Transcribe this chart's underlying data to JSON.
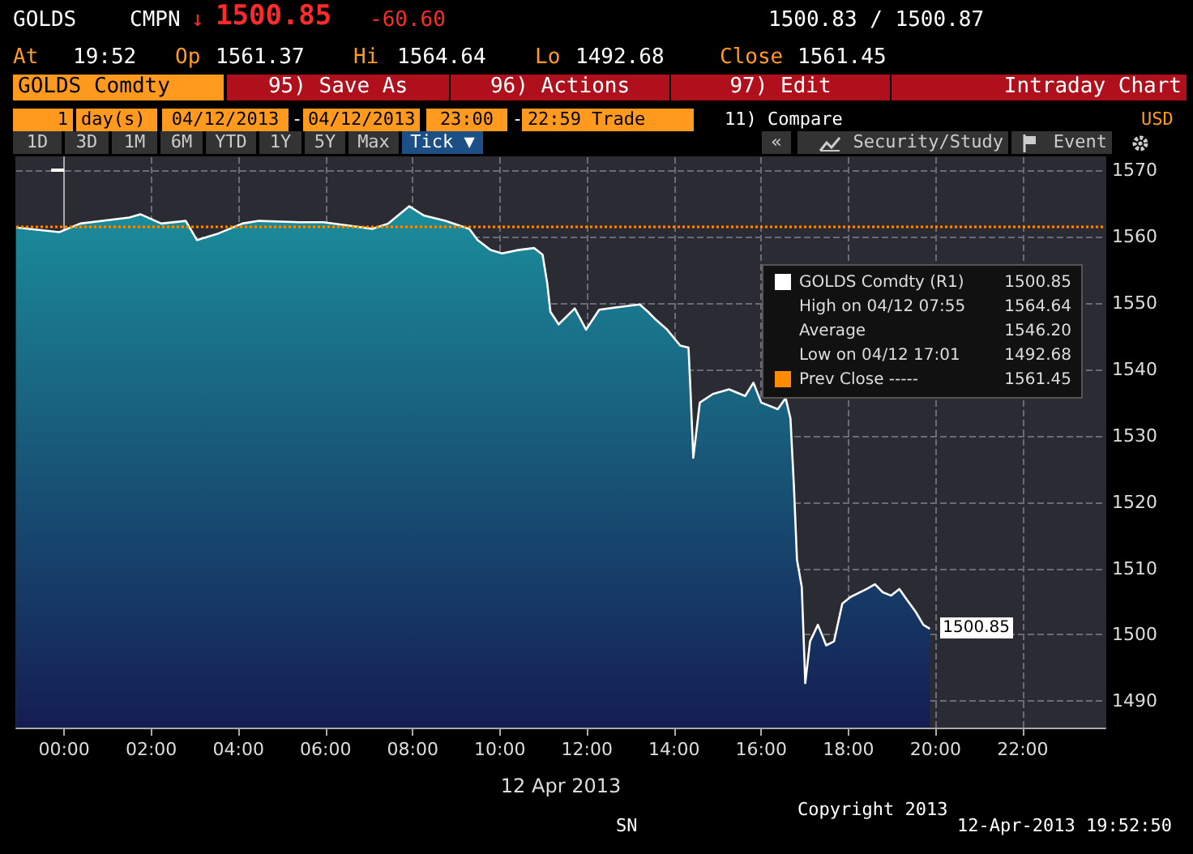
{
  "chart_data": {
    "type": "area",
    "xlabel": "12 Apr 2013",
    "x": [
      -1.1,
      -0.11,
      0.37,
      1.49,
      1.75,
      2.23,
      2.79,
      3.05,
      3.54,
      4.09,
      4.47,
      5.4,
      5.95,
      6.51,
      7.07,
      7.44,
      7.92,
      8.26,
      8.75,
      9.3,
      9.49,
      9.79,
      10.05,
      10.42,
      10.79,
      10.98,
      11.09,
      11.16,
      11.35,
      11.72,
      11.98,
      12.28,
      12.84,
      13.21,
      13.4,
      13.58,
      13.84,
      14.14,
      14.33,
      14.37,
      14.44,
      14.59,
      14.89,
      15.26,
      15.63,
      15.82,
      16.0,
      16.38,
      16.56,
      16.67,
      16.75,
      16.82,
      16.93,
      17.01,
      17.12,
      17.3,
      17.49,
      17.67,
      17.86,
      18.05,
      18.42,
      18.61,
      18.79,
      18.98,
      19.17,
      19.35,
      19.54,
      19.72,
      19.87
    ],
    "series": [
      {
        "name": "GOLDS Comdty (R1)",
        "color": "#1b8d9c",
        "values": [
          1561.4,
          1560.7,
          1562.0,
          1562.9,
          1563.4,
          1562.0,
          1562.4,
          1559.5,
          1560.5,
          1562.0,
          1562.4,
          1562.2,
          1562.2,
          1561.7,
          1561.2,
          1562.0,
          1564.6,
          1563.2,
          1562.4,
          1561.2,
          1559.5,
          1558.0,
          1557.5,
          1558.0,
          1558.3,
          1557.3,
          1552.9,
          1548.7,
          1546.8,
          1549.2,
          1546.0,
          1549.0,
          1549.5,
          1549.8,
          1548.7,
          1547.5,
          1546.0,
          1543.6,
          1543.3,
          1537.7,
          1526.7,
          1535.0,
          1536.3,
          1537.0,
          1536.0,
          1538.0,
          1535.0,
          1534.0,
          1535.7,
          1532.6,
          1522.3,
          1511.3,
          1507.2,
          1492.7,
          1499.0,
          1501.5,
          1498.4,
          1499.0,
          1504.7,
          1505.7,
          1506.9,
          1507.6,
          1506.4,
          1505.9,
          1506.9,
          1505.2,
          1503.5,
          1501.5,
          1500.9
        ]
      }
    ],
    "xlim": [
      -1.1,
      23.9
    ],
    "xticks": [
      {
        "value": 0,
        "label": "00:00"
      },
      {
        "value": 2,
        "label": "02:00"
      },
      {
        "value": 4,
        "label": "04:00"
      },
      {
        "value": 6,
        "label": "06:00"
      },
      {
        "value": 8,
        "label": "08:00"
      },
      {
        "value": 10,
        "label": "10:00"
      },
      {
        "value": 12,
        "label": "12:00"
      },
      {
        "value": 14,
        "label": "14:00"
      },
      {
        "value": 16,
        "label": "16:00"
      },
      {
        "value": 18,
        "label": "18:00"
      },
      {
        "value": 20,
        "label": "20:00"
      },
      {
        "value": 22,
        "label": "22:00"
      }
    ],
    "ylim": [
      1486,
      1572
    ],
    "yticks": [
      1490,
      1500,
      1510,
      1520,
      1530,
      1540,
      1550,
      1560,
      1570
    ],
    "grid": true,
    "legend": "right",
    "ref_lines": [
      {
        "axis": "y",
        "value": 1561.45,
        "label": "Prev Close -----",
        "color": "#ff8c00",
        "line_style": "dotted"
      }
    ],
    "annotations": [
      "GOLDS",
      "CMPN",
      "↓",
      "1500.85",
      "-60.60",
      "1500.83 / 1500.87",
      "At",
      "19:52",
      "Op",
      "1561.37",
      "Hi",
      "1564.64",
      "Lo",
      "1492.68",
      "Close",
      "1561.45",
      "GOLDS Comdty",
      "95) Save As",
      "96) Actions",
      "97) Edit",
      "Intraday Chart",
      "1",
      "day(s)",
      "04/12/2013",
      "-",
      "04/12/2013",
      "23:00",
      "-",
      "22:59",
      "Trade",
      "11) Compare",
      "USD",
      "1D",
      "3D",
      "1M",
      "6M",
      "YTD",
      "1Y",
      "5Y",
      "Max",
      "Tick ▼",
      "«",
      "Security/Study",
      "Event",
      "Copyright 2013",
      "12-Apr-2013 19:52:50",
      "SN",
      "1500.85",
      "High on 04/12 07:55",
      "1564.64",
      "Average",
      "1546.20",
      "Low on 04/12 17:01",
      "1492.68",
      "1500.85"
    ]
  }
}
